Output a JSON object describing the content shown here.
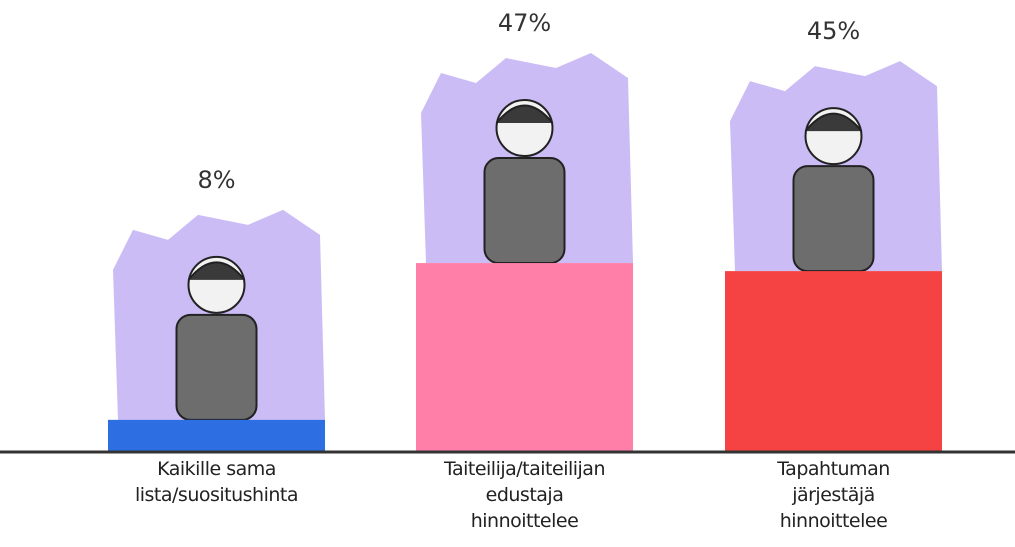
{
  "chart_data": {
    "type": "bar",
    "categories": [
      "Kaikille sama\nlista/suositushinta",
      "Taiteilija/taiteilijan\nedustaja\nhinnoittelee",
      "Tapahtuman\njärjestäjä\nhinnoittelee"
    ],
    "values": [
      8,
      47,
      45
    ],
    "value_labels": [
      "8%",
      "47%",
      "45%"
    ],
    "colors": [
      "#2d6fe3",
      "#ff7fa8",
      "#f54343"
    ]
  }
}
